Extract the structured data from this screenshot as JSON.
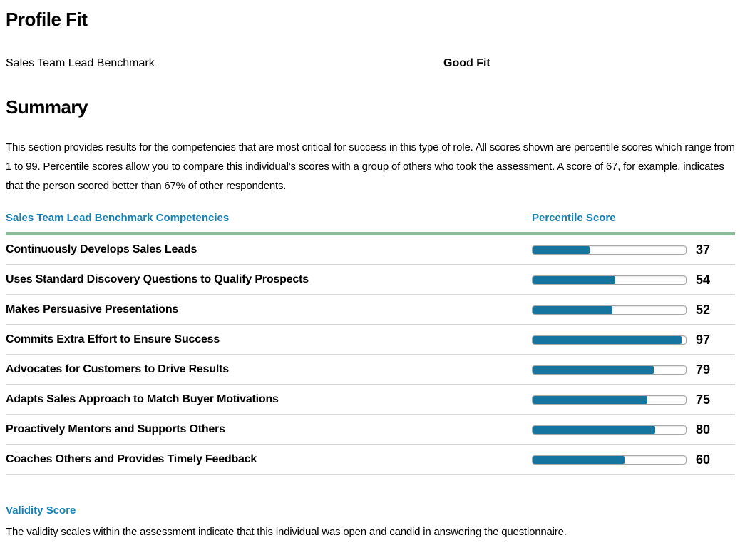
{
  "page": {
    "title": "Profile Fit",
    "benchmark_label": "Sales Team Lead Benchmark",
    "fit_rating": "Good Fit",
    "summary_heading": "Summary",
    "summary_text": "This section provides results for the competencies that are most critical for success in this type of role. All scores shown are percentile scores which range from 1 to 99. Percentile scores allow you to compare this individual's scores with a group of others who took the assessment. A score of 67, for example, indicates that the person scored better than 67% of other respondents."
  },
  "table": {
    "competency_header": "Sales Team Lead Benchmark Competencies",
    "score_header": "Percentile Score",
    "rows": [
      {
        "label": "Continuously Develops Sales Leads",
        "score": 37
      },
      {
        "label": "Uses Standard Discovery Questions to Qualify Prospects",
        "score": 54
      },
      {
        "label": "Makes Persuasive Presentations",
        "score": 52
      },
      {
        "label": "Commits Extra Effort to Ensure Success",
        "score": 97
      },
      {
        "label": "Advocates for Customers to Drive Results",
        "score": 79
      },
      {
        "label": "Adapts Sales Approach to Match Buyer Motivations",
        "score": 75
      },
      {
        "label": "Proactively Mentors and Supports Others",
        "score": 80
      },
      {
        "label": "Coaches Others and Provides Timely Feedback",
        "score": 60
      }
    ]
  },
  "validity": {
    "heading": "Validity Score",
    "text": "The validity scales within the assessment indicate that this individual was open and candid in answering the questionnaire."
  },
  "colors": {
    "accent_blue": "#1681B4",
    "bar_fill": "#15759E",
    "green_rule": "#8BBC9A",
    "row_divider": "#D6D6D6",
    "bar_border": "#A9A9A9"
  },
  "chart_data": {
    "type": "bar",
    "orientation": "horizontal",
    "categories": [
      "Continuously Develops Sales Leads",
      "Uses Standard Discovery Questions to Qualify Prospects",
      "Makes Persuasive Presentations",
      "Commits Extra Effort to Ensure Success",
      "Advocates for Customers to Drive Results",
      "Adapts Sales Approach to Match Buyer Motivations",
      "Proactively Mentors and Supports Others",
      "Coaches Others and Provides Timely Feedback"
    ],
    "values": [
      37,
      54,
      52,
      97,
      79,
      75,
      80,
      60
    ],
    "title": "Sales Team Lead Benchmark Competencies",
    "xlabel": "Percentile Score",
    "ylabel": "",
    "xlim": [
      0,
      100
    ],
    "grid": false,
    "legend": false
  }
}
